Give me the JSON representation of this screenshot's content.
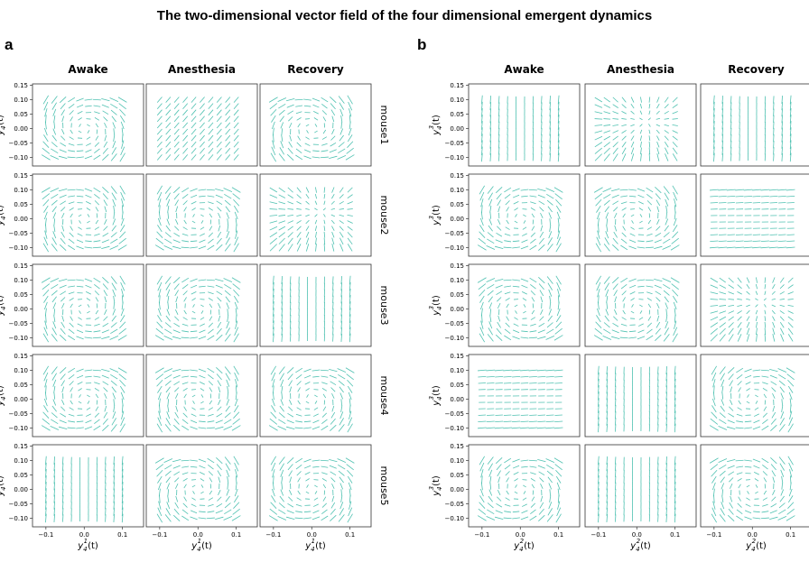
{
  "figure": {
    "title": "The two-dimensional vector field of the four dimensional emergent dynamics",
    "colors": {
      "arrow": "#4fc1b1",
      "frame": "#333333"
    }
  },
  "panels": [
    {
      "label": "a",
      "conditions": [
        "Awake",
        "Anesthesia",
        "Recovery"
      ],
      "xlabel": {
        "main": "y",
        "sub": "4",
        "sup": "1",
        "tail": "(t)"
      },
      "ylabel": {
        "main": "y",
        "sub": "4",
        "sup": "2",
        "tail": "(t)"
      },
      "show_mouse_labels": true
    },
    {
      "label": "b",
      "conditions": [
        "Awake",
        "Anesthesia",
        "Recovery"
      ],
      "xlabel": {
        "main": "y",
        "sub": "4",
        "sup": "2",
        "tail": "(t)"
      },
      "ylabel": {
        "main": "y",
        "sub": "4",
        "sup": "3",
        "tail": "(t)"
      },
      "show_mouse_labels": false
    }
  ],
  "mice": [
    "mouse1",
    "mouse2",
    "mouse3",
    "mouse4",
    "mouse5"
  ],
  "chart_data": {
    "type": "quiver",
    "grid_size": 10,
    "xlim": [
      -0.135,
      0.155
    ],
    "ylim": [
      -0.13,
      0.155
    ],
    "xticks": [
      -0.1,
      0.0,
      0.1
    ],
    "xtick_labels": [
      "−0.1",
      "0.0",
      "0.1"
    ],
    "yticks": [
      0.15,
      0.1,
      0.05,
      0.0,
      -0.05,
      -0.1
    ],
    "ytick_labels": [
      "0.15",
      "0.10",
      "0.05",
      "0.00",
      "−0.05",
      "−0.10"
    ],
    "fields": {
      "a": [
        [
          "swirl_cw",
          "uniform",
          "swirl_ccw"
        ],
        [
          "swirl_ccw",
          "swirl_cw",
          "converge"
        ],
        [
          "swirl_ccw",
          "swirl_cw",
          "vertical"
        ],
        [
          "swirl_cw",
          "swirl_ccw",
          "swirl_cw"
        ],
        [
          "vertical",
          "swirl_ccw",
          "swirl_cw"
        ]
      ],
      "b": [
        [
          "vertical",
          "converge",
          "vertical"
        ],
        [
          "swirl_cw",
          "swirl_ccw",
          "horizontal"
        ],
        [
          "swirl_ccw",
          "swirl_cw",
          "converge"
        ],
        [
          "horizontal",
          "vertical",
          "swirl_cw"
        ],
        [
          "swirl_cw",
          "vertical",
          "swirl_ccw"
        ]
      ]
    }
  }
}
